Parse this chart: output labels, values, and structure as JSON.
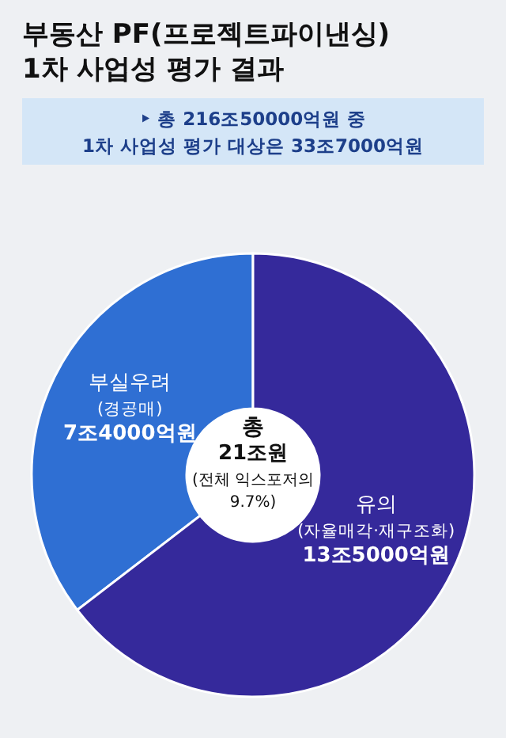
{
  "chart_data": {
    "type": "donut",
    "title": "부동산 PF(프로젝트파이낸싱)\n1차 사업성 평가 결과",
    "subtitle": "‣ 총 216조50000억원 중\n1차 사업성 평가 대상은 33조7000억원",
    "categories": [
      "부실우려\n(경공매)",
      "유의\n(자율매각·재구조화)"
    ],
    "values": [
      7.4,
      13.5
    ],
    "value_labels": [
      "7조4000억원",
      "13조5000억원"
    ],
    "colors": [
      "#2f6fd3",
      "#35299b"
    ],
    "annotations": [
      "총\n21조원\n(전체 익스포저의\n9.7%)"
    ]
  }
}
